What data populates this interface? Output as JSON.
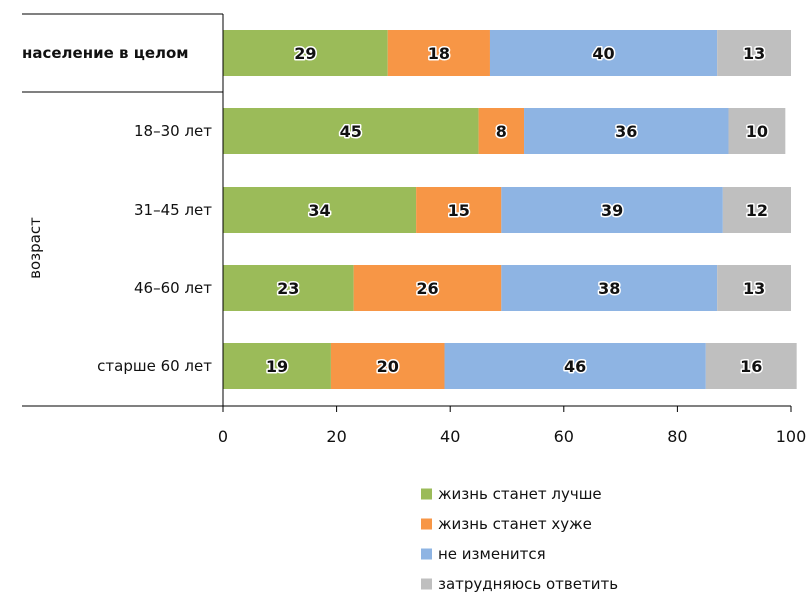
{
  "chart_data": {
    "type": "bar",
    "orientation": "horizontal",
    "stacked": true,
    "categories": [
      "население в целом",
      "18–30 лет",
      "31–45 лет",
      "46–60 лет",
      "старше 60 лет"
    ],
    "category_group_label": "возраст",
    "series": [
      {
        "name": "жизнь станет лучше",
        "color": "#9bbb59",
        "values": [
          29,
          45,
          34,
          23,
          19
        ]
      },
      {
        "name": "жизнь станет хуже",
        "color": "#f79646",
        "values": [
          18,
          8,
          15,
          26,
          20
        ]
      },
      {
        "name": "не изменится",
        "color": "#8eb4e3",
        "values": [
          40,
          36,
          39,
          38,
          46
        ]
      },
      {
        "name": "затрудняюсь ответить",
        "color": "#bfbfbf",
        "values": [
          13,
          10,
          12,
          13,
          16
        ]
      }
    ],
    "xlim": [
      0,
      100
    ],
    "xticks": [
      "0",
      "20",
      "40",
      "60",
      "80",
      "100"
    ],
    "grid": false,
    "legend_position": "bottom-right"
  }
}
